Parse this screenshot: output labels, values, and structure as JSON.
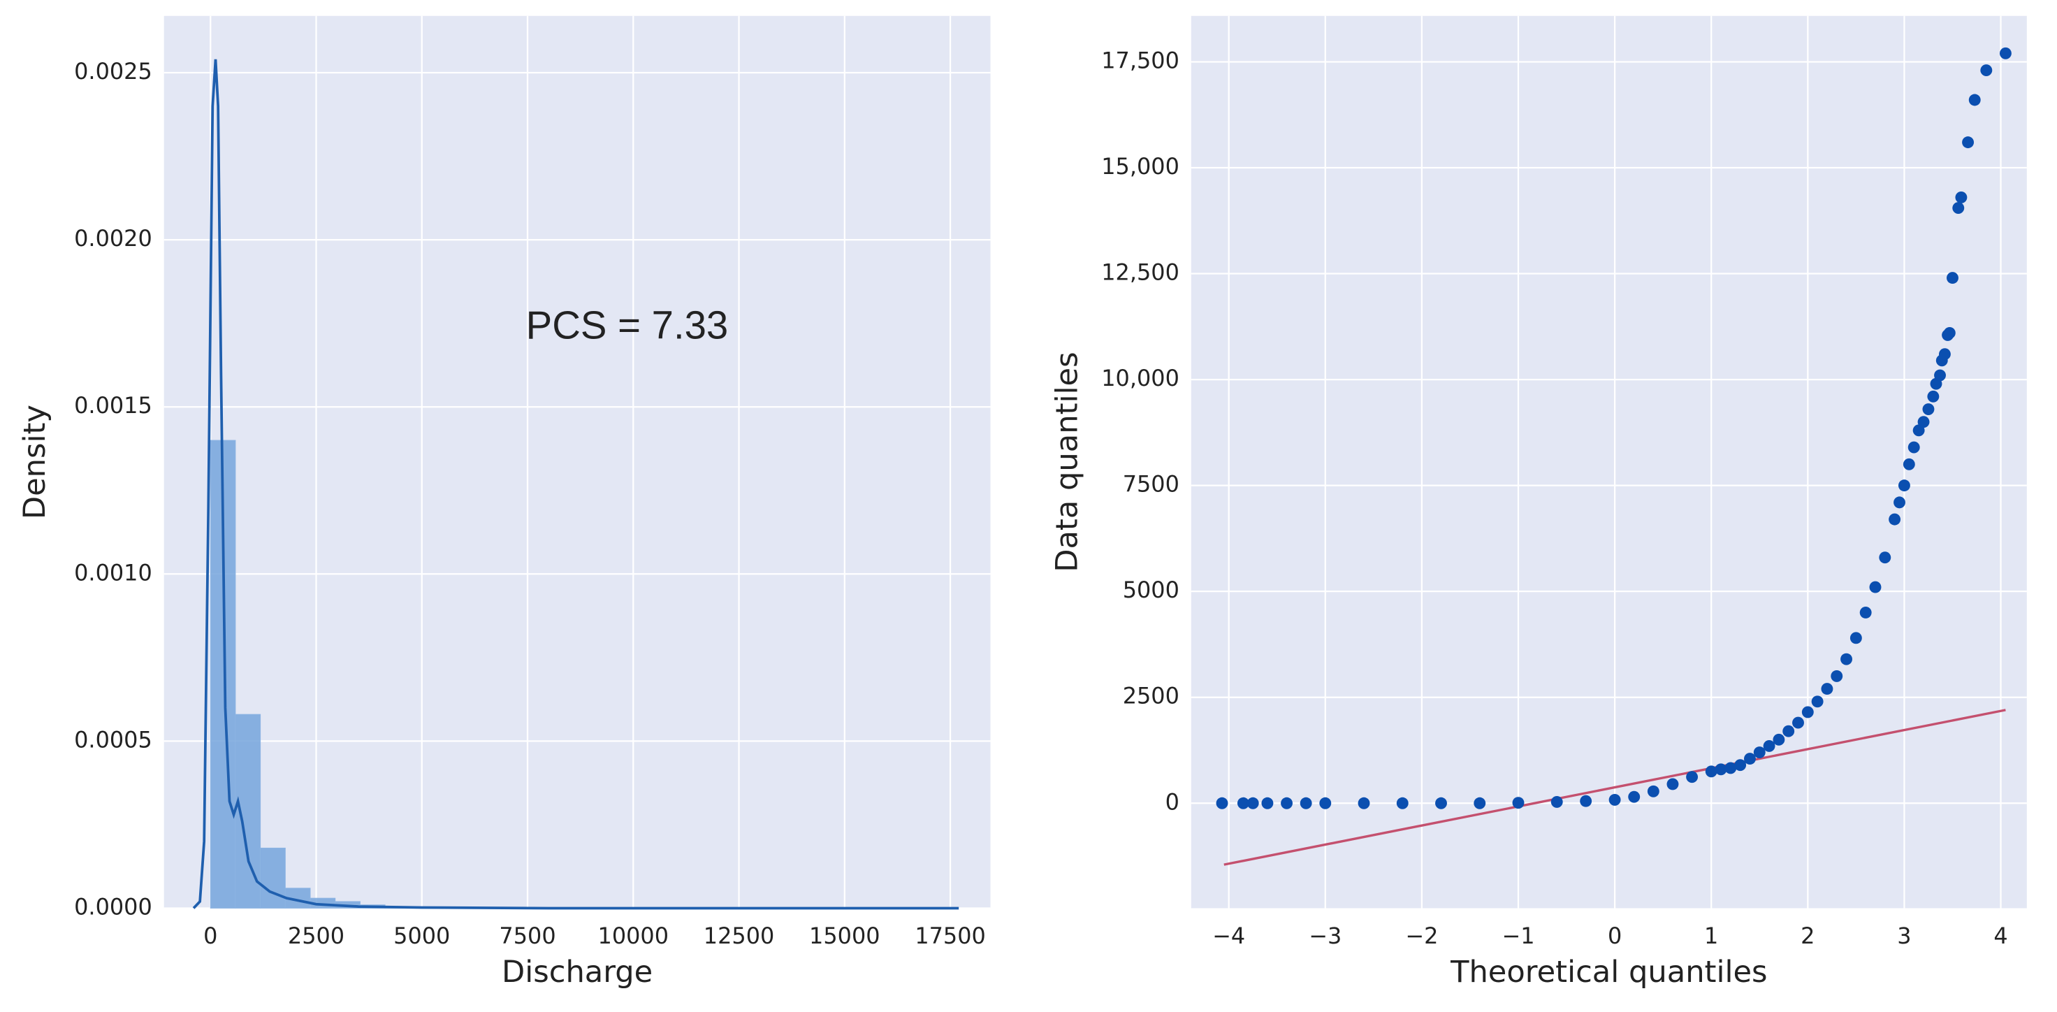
{
  "chart_data": [
    {
      "type": "histogram",
      "xlabel": "Discharge",
      "ylabel": "Density",
      "annotation": "PCS = 7.33",
      "bins": [
        0,
        590,
        1180,
        1770,
        2360,
        2950,
        3540,
        4130,
        4720,
        5310,
        5900,
        6490,
        7080,
        7670,
        8260,
        8850,
        9440,
        10030,
        10620,
        11210,
        11800,
        12390,
        12980,
        13570,
        14160,
        14750,
        15340,
        15930,
        16520,
        17110,
        17700
      ],
      "values": [
        0.0014,
        0.00058,
        0.00018,
        6e-05,
        3e-05,
        2e-05,
        1e-05,
        5e-06,
        0,
        0,
        0,
        0,
        0,
        0,
        0,
        0,
        0,
        0,
        0,
        0,
        0,
        0,
        0,
        0,
        0,
        0,
        0,
        0,
        0,
        0
      ],
      "color": "#75a5dc",
      "kde": {
        "color": "#1f5fae",
        "x": [
          -400,
          -250,
          -150,
          -50,
          50,
          120,
          180,
          250,
          350,
          450,
          550,
          650,
          750,
          900,
          1100,
          1400,
          1800,
          2500,
          3500,
          5000,
          8000,
          12000,
          17700
        ],
        "y": [
          0,
          2e-05,
          0.0002,
          0.0012,
          0.0024,
          0.00254,
          0.0024,
          0.0016,
          0.0006,
          0.00032,
          0.00028,
          0.00032,
          0.00026,
          0.00014,
          8e-05,
          5e-05,
          3e-05,
          1.2e-05,
          5e-06,
          2e-06,
          0,
          0,
          0
        ]
      },
      "xlim": [
        -1100,
        18450
      ],
      "xticks": [
        0,
        2500,
        5000,
        7500,
        10000,
        12500,
        15000,
        17500
      ],
      "ylim": [
        0,
        0.00267
      ],
      "yticks": [
        {
          "value": 0,
          "label": "0.0000"
        },
        {
          "value": 0.0005,
          "label": "0.0005"
        },
        {
          "value": 0.001,
          "label": "0.0010"
        },
        {
          "value": 0.0015,
          "label": "0.0015"
        },
        {
          "value": 0.002,
          "label": "0.0020"
        },
        {
          "value": 0.0025,
          "label": "0.0025"
        }
      ],
      "grid": true
    },
    {
      "type": "scatter",
      "xlabel": "Theoretical quantiles",
      "ylabel": "Data quantiles",
      "color": "#0b4fb0",
      "x": [
        -4.07,
        -3.85,
        -3.75,
        -3.6,
        -3.4,
        -3.2,
        -3,
        -2.6,
        -2.2,
        -1.8,
        -1.4,
        -1,
        -0.6,
        -0.3,
        0,
        0.2,
        0.4,
        0.6,
        0.8,
        1.0,
        1.1,
        1.2,
        1.3,
        1.4,
        1.5,
        1.6,
        1.7,
        1.8,
        1.9,
        2.0,
        2.1,
        2.2,
        2.3,
        2.4,
        2.5,
        2.6,
        2.7,
        2.8,
        2.9,
        2.95,
        3.0,
        3.05,
        3.1,
        3.15,
        3.2,
        3.25,
        3.3,
        3.33,
        3.37,
        3.39,
        3.42,
        3.45,
        3.47,
        3.5,
        3.56,
        3.59,
        3.66,
        3.73,
        3.85,
        4.05
      ],
      "y": [
        0,
        0,
        0,
        0,
        0,
        0,
        0,
        0,
        0,
        0,
        0,
        10,
        30,
        50,
        80,
        150,
        280,
        450,
        620,
        750,
        800,
        830,
        900,
        1050,
        1200,
        1350,
        1500,
        1700,
        1900,
        2150,
        2400,
        2700,
        3000,
        3400,
        3900,
        4500,
        5100,
        5800,
        6700,
        7100,
        7500,
        8000,
        8400,
        8800,
        9000,
        9300,
        9600,
        9900,
        10100,
        10450,
        10600,
        11050,
        11100,
        12400,
        14050,
        14300,
        15600,
        16600,
        17300,
        17700
      ],
      "line": {
        "color": "#c4506e",
        "x": [
          -4.05,
          4.05
        ],
        "y": [
          -1450,
          2200
        ]
      },
      "xlim": [
        -4.39,
        4.27
      ],
      "xticks": [
        {
          "value": -4,
          "label": "−4"
        },
        {
          "value": -3,
          "label": "−3"
        },
        {
          "value": -2,
          "label": "−2"
        },
        {
          "value": -1,
          "label": "−1"
        },
        0,
        1,
        2,
        3,
        4
      ],
      "ylim": [
        -2478,
        18584
      ],
      "yticks": [
        0,
        2500,
        5000,
        7500,
        {
          "value": 10000,
          "label": "10,000"
        },
        {
          "value": 12500,
          "label": "12,500"
        },
        {
          "value": 15000,
          "label": "15,000"
        },
        {
          "value": 17500,
          "label": "17,500"
        }
      ],
      "grid": true
    }
  ]
}
